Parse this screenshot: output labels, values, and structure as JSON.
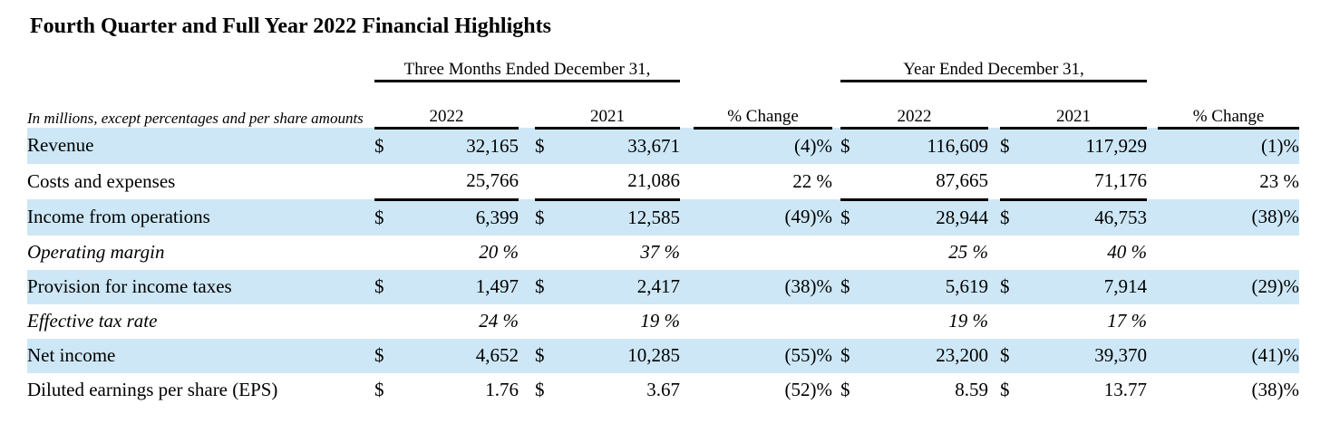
{
  "page_title": "Fourth Quarter and Full Year 2022 Financial Highlights",
  "table": {
    "note": "In millions, except percentages and per share amounts",
    "group_headers": [
      "Three Months Ended December 31,",
      "Year Ended December 31,"
    ],
    "sub_headers": [
      "2022",
      "2021",
      "% Change",
      "2022",
      "2021",
      "% Change"
    ],
    "rows": [
      {
        "label": "Revenue",
        "italic": false,
        "highlight": true,
        "underline_after": false,
        "q2022_cur": "$",
        "q2022_val": "32,165",
        "q2021_cur": "$",
        "q2021_val": "33,671",
        "q_change": "(4)%",
        "y2022_cur": "$",
        "y2022_val": "116,609",
        "y2021_cur": "$",
        "y2021_val": "117,929",
        "y_change": "(1)%"
      },
      {
        "label": "Costs and expenses",
        "italic": false,
        "highlight": false,
        "underline_after": true,
        "q2022_cur": "",
        "q2022_val": "25,766",
        "q2021_cur": "",
        "q2021_val": "21,086",
        "q_change": "22 %",
        "y2022_cur": "",
        "y2022_val": "87,665",
        "y2021_cur": "",
        "y2021_val": "71,176",
        "y_change": "23 %"
      },
      {
        "label": "Income from operations",
        "italic": false,
        "highlight": true,
        "underline_after": false,
        "q2022_cur": "$",
        "q2022_val": "6,399",
        "q2021_cur": "$",
        "q2021_val": "12,585",
        "q_change": "(49)%",
        "y2022_cur": "$",
        "y2022_val": "28,944",
        "y2021_cur": "$",
        "y2021_val": "46,753",
        "y_change": "(38)%"
      },
      {
        "label": "Operating margin",
        "italic": true,
        "highlight": false,
        "underline_after": false,
        "q2022_cur": "",
        "q2022_val": "20 %",
        "q2021_cur": "",
        "q2021_val": "37 %",
        "q_change": "",
        "y2022_cur": "",
        "y2022_val": "25 %",
        "y2021_cur": "",
        "y2021_val": "40 %",
        "y_change": ""
      },
      {
        "label": "Provision for income taxes",
        "italic": false,
        "highlight": true,
        "underline_after": false,
        "q2022_cur": "$",
        "q2022_val": "1,497",
        "q2021_cur": "$",
        "q2021_val": "2,417",
        "q_change": "(38)%",
        "y2022_cur": "$",
        "y2022_val": "5,619",
        "y2021_cur": "$",
        "y2021_val": "7,914",
        "y_change": "(29)%"
      },
      {
        "label": "Effective tax rate",
        "italic": true,
        "highlight": false,
        "underline_after": false,
        "q2022_cur": "",
        "q2022_val": "24 %",
        "q2021_cur": "",
        "q2021_val": "19 %",
        "q_change": "",
        "y2022_cur": "",
        "y2022_val": "19 %",
        "y2021_cur": "",
        "y2021_val": "17 %",
        "y_change": ""
      },
      {
        "label": "Net income",
        "italic": false,
        "highlight": true,
        "underline_after": false,
        "q2022_cur": "$",
        "q2022_val": "4,652",
        "q2021_cur": "$",
        "q2021_val": "10,285",
        "q_change": "(55)%",
        "y2022_cur": "$",
        "y2022_val": "23,200",
        "y2021_cur": "$",
        "y2021_val": "39,370",
        "y_change": "(41)%"
      },
      {
        "label": "Diluted earnings per share (EPS)",
        "italic": false,
        "highlight": false,
        "underline_after": false,
        "q2022_cur": "$",
        "q2022_val": "1.76",
        "q2021_cur": "$",
        "q2021_val": "3.67",
        "q_change": "(52)%",
        "y2022_cur": "$",
        "y2022_val": "8.59",
        "y2021_cur": "$",
        "y2021_val": "13.77",
        "y_change": "(38)%"
      }
    ]
  },
  "colors": {
    "highlight_row": "#cde7f6",
    "rule": "#000000",
    "text": "#000000"
  }
}
